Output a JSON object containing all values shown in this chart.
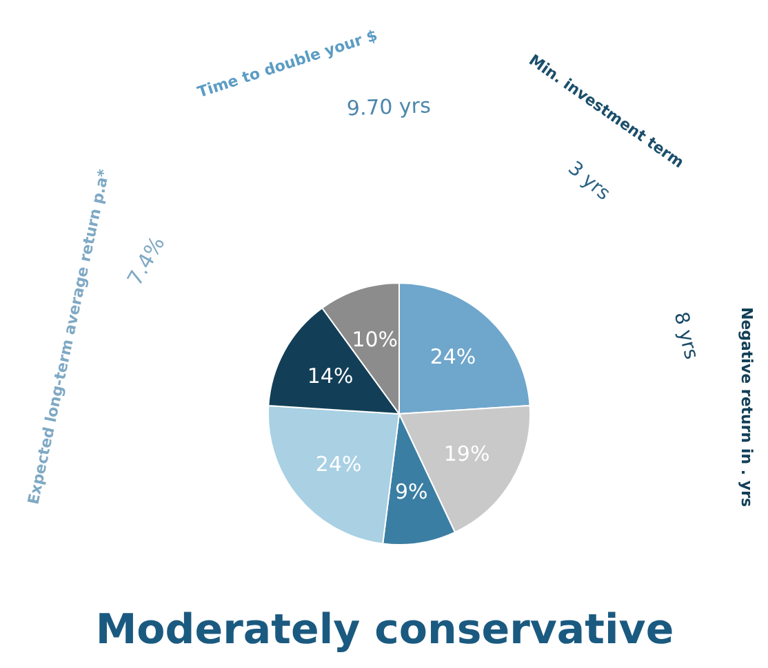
{
  "chart_data": {
    "type": "pie",
    "title": "Moderately conservative",
    "categories": [
      null,
      null,
      null,
      null,
      null,
      null
    ],
    "values": [
      24,
      19,
      9,
      24,
      14,
      10
    ],
    "colors": [
      "#6fa6cc",
      "#c9c9c9",
      "#3b7ea3",
      "#a9d0e3",
      "#123f57",
      "#8c8c8c"
    ],
    "value_labels": [
      "24%",
      "19%",
      "9%",
      "24%",
      "14%",
      "10%"
    ],
    "annotations": [
      "Expected long-term average return p.a*",
      "7.4%",
      "Time to double your $",
      "9.70 yrs",
      "Min. investment term",
      "3 yrs",
      "Negative return in . yrs",
      "8 yrs"
    ]
  }
}
